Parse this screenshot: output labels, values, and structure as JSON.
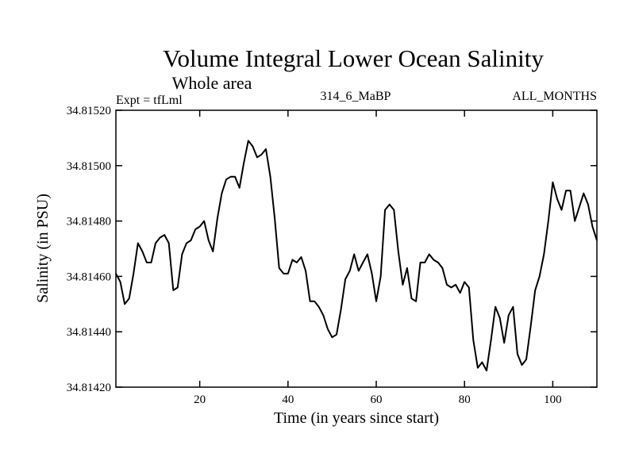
{
  "chart_data": {
    "type": "line",
    "title": "Volume Integral Lower Ocean Salinity",
    "subtitle": "Whole area",
    "left_label": "Expt = tfLml",
    "center_label": "314_6_MaBP",
    "right_label": "ALL_MONTHS",
    "xlabel": "Time (in years since start)",
    "ylabel": "Salinity (in PSU)",
    "xlim": [
      1,
      110
    ],
    "ylim": [
      34.8142,
      34.8152
    ],
    "x_ticks": [
      20,
      40,
      60,
      80,
      100
    ],
    "x_tick_labels": [
      "20",
      "40",
      "60",
      "80",
      "100"
    ],
    "y_ticks": [
      34.8142,
      34.8144,
      34.8146,
      34.8148,
      34.815,
      34.8152
    ],
    "y_tick_labels": [
      "34.81420",
      "34.81440",
      "34.81460",
      "34.81480",
      "34.81500",
      "34.81520"
    ],
    "x": [
      1,
      2,
      3,
      4,
      5,
      6,
      7,
      8,
      9,
      10,
      11,
      12,
      13,
      14,
      15,
      16,
      17,
      18,
      19,
      20,
      21,
      22,
      23,
      24,
      25,
      26,
      27,
      28,
      29,
      30,
      31,
      32,
      33,
      34,
      35,
      36,
      37,
      38,
      39,
      40,
      41,
      42,
      43,
      44,
      45,
      46,
      47,
      48,
      49,
      50,
      51,
      52,
      53,
      54,
      55,
      56,
      57,
      58,
      59,
      60,
      61,
      62,
      63,
      64,
      65,
      66,
      67,
      68,
      69,
      70,
      71,
      72,
      73,
      74,
      75,
      76,
      77,
      78,
      79,
      80,
      81,
      82,
      83,
      84,
      85,
      86,
      87,
      88,
      89,
      90,
      91,
      92,
      93,
      94,
      95,
      96,
      97,
      98,
      99,
      100,
      101,
      102,
      103,
      104,
      105,
      106,
      107,
      108,
      109,
      110
    ],
    "values": [
      34.81461,
      34.81458,
      34.8145,
      34.81452,
      34.81461,
      34.81472,
      34.81469,
      34.81465,
      34.81465,
      34.81472,
      34.81474,
      34.81475,
      34.81472,
      34.81455,
      34.81456,
      34.81468,
      34.81472,
      34.81473,
      34.81477,
      34.81478,
      34.8148,
      34.81473,
      34.81469,
      34.81481,
      34.8149,
      34.81495,
      34.81496,
      34.81496,
      34.81492,
      34.81501,
      34.81509,
      34.81507,
      34.81503,
      34.81504,
      34.81506,
      34.81496,
      34.81481,
      34.81463,
      34.81461,
      34.81461,
      34.81466,
      34.81465,
      34.81467,
      34.81462,
      34.81451,
      34.81451,
      34.81449,
      34.81446,
      34.81441,
      34.81438,
      34.81439,
      34.81448,
      34.81459,
      34.81462,
      34.81468,
      34.81462,
      34.81465,
      34.81468,
      34.81461,
      34.81451,
      34.8146,
      34.81484,
      34.81486,
      34.81484,
      34.81469,
      34.81457,
      34.81463,
      34.81452,
      34.81451,
      34.81465,
      34.81465,
      34.81468,
      34.81466,
      34.81465,
      34.81463,
      34.81457,
      34.81456,
      34.81457,
      34.81454,
      34.81458,
      34.81456,
      34.81437,
      34.81427,
      34.81429,
      34.81426,
      34.81437,
      34.81449,
      34.81445,
      34.81436,
      34.81446,
      34.81449,
      34.81432,
      34.81428,
      34.8143,
      34.81442,
      34.81455,
      34.8146,
      34.81468,
      34.8148,
      34.81494,
      34.81488,
      34.81484,
      34.81491,
      34.81491,
      34.8148,
      34.81485,
      34.8149,
      34.81486,
      34.81478,
      34.81473
    ]
  }
}
